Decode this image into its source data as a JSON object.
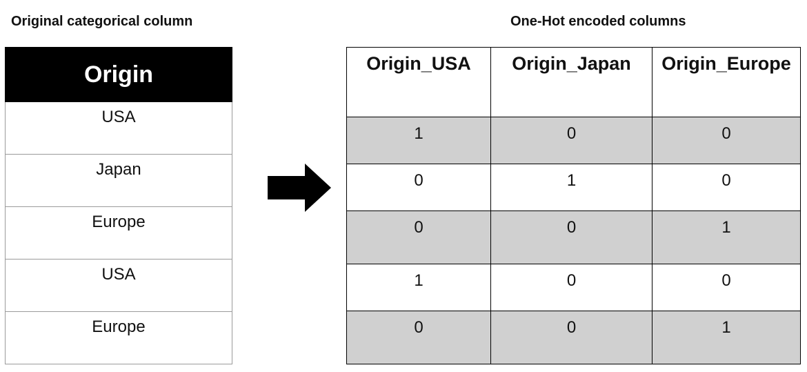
{
  "headings": {
    "left": "Original categorical column",
    "right": "One-Hot encoded columns"
  },
  "original": {
    "header": "Origin",
    "rows": [
      "USA",
      "Japan",
      "Europe",
      "USA",
      "Europe"
    ]
  },
  "encoded": {
    "headers": [
      "Origin_USA",
      "Origin_Japan",
      "Origin_Europe"
    ],
    "rows": [
      [
        "1",
        "0",
        "0"
      ],
      [
        "0",
        "1",
        "0"
      ],
      [
        "0",
        "0",
        "1"
      ],
      [
        "1",
        "0",
        "0"
      ],
      [
        "0",
        "0",
        "1"
      ]
    ],
    "shaded_fill": "#d0d0d0"
  },
  "arrow_icon": "right-arrow-icon"
}
